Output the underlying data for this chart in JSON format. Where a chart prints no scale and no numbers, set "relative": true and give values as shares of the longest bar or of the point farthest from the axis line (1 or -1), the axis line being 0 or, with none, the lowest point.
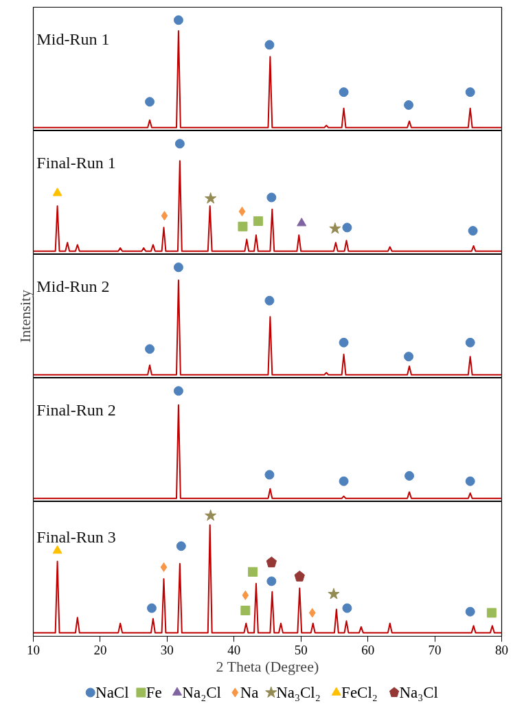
{
  "chart_data": [
    {
      "type": "line",
      "title": "Mid-Run 1",
      "relative": true,
      "xlim": [
        10,
        80
      ],
      "tick_labels": false,
      "series": [
        {
          "color": "#c00000",
          "x": [
            10,
            27.1,
            27.4,
            27.7,
            31.4,
            31.7,
            32.0,
            45.1,
            45.4,
            45.7,
            53.5,
            53.8,
            54.1,
            56.1,
            56.4,
            56.7,
            65.9,
            66.2,
            66.5,
            75.0,
            75.3,
            75.6,
            80
          ],
          "values": [
            0,
            0,
            0.07,
            0,
            0,
            0.9,
            0,
            0,
            0.66,
            0,
            0,
            0.02,
            0,
            0,
            0.18,
            0,
            0,
            0.06,
            0,
            0,
            0.18,
            0,
            0
          ]
        },
        {
          "type": "scatter",
          "color": "#4f81bd",
          "marker": "circle",
          "x": [
            27.4,
            31.7,
            45.3,
            56.4,
            66.1,
            75.3
          ],
          "values": [
            0.24,
            1.0,
            0.77,
            0.33,
            0.21,
            0.33
          ]
        }
      ]
    },
    {
      "type": "line",
      "title": "Final-Run 1",
      "relative": true,
      "xlim": [
        10,
        80
      ],
      "tick_labels": false,
      "series": [
        {
          "color": "#c00000",
          "x": [
            10,
            13.3,
            13.6,
            13.9,
            14.8,
            15.1,
            15.4,
            16.3,
            16.6,
            16.9,
            22.7,
            23.0,
            23.3,
            26.2,
            26.5,
            26.8,
            27.6,
            27.9,
            28.2,
            29.2,
            29.5,
            29.8,
            31.6,
            31.9,
            32.2,
            36.1,
            36.4,
            36.7,
            41.6,
            41.9,
            42.2,
            43.0,
            43.3,
            43.6,
            45.4,
            45.7,
            46.0,
            49.4,
            49.7,
            50.0,
            54.9,
            55.2,
            55.5,
            56.5,
            56.8,
            57.1,
            63.0,
            63.3,
            63.6,
            75.5,
            75.8,
            76.1,
            80
          ],
          "values": [
            0,
            0,
            0.42,
            0,
            0,
            0.08,
            0,
            0,
            0.06,
            0,
            0,
            0.03,
            0,
            0,
            0.03,
            0,
            0,
            0.06,
            0,
            0,
            0.22,
            0,
            0,
            0.84,
            0,
            0,
            0.42,
            0,
            0,
            0.11,
            0,
            0,
            0.15,
            0,
            0,
            0.39,
            0,
            0,
            0.15,
            0,
            0,
            0.08,
            0,
            0,
            0.1,
            0,
            0,
            0.04,
            0,
            0,
            0.05,
            0,
            0
          ]
        },
        {
          "type": "scatter",
          "color": "#4f81bd",
          "marker": "circle",
          "x": [
            31.9,
            45.6,
            56.9,
            75.7
          ],
          "values": [
            1.0,
            0.5,
            0.22,
            0.19
          ]
        },
        {
          "type": "scatter",
          "color": "#9bbb59",
          "marker": "square",
          "x": [
            41.3,
            43.6
          ],
          "values": [
            0.23,
            0.28
          ]
        },
        {
          "type": "scatter",
          "name": "Na₂Cl",
          "color": "#8064a2",
          "marker": "triangle",
          "x": [
            50.1
          ],
          "values": [
            0.26
          ]
        },
        {
          "type": "scatter",
          "color": "#f79646",
          "marker": "diamond",
          "x": [
            29.6,
            41.2
          ],
          "values": [
            0.33,
            0.37
          ]
        },
        {
          "type": "scatter",
          "color": "#948a54",
          "marker": "star",
          "x": [
            36.5,
            55.1
          ],
          "values": [
            0.49,
            0.21
          ]
        },
        {
          "type": "scatter",
          "color": "#ffc000",
          "marker": "triangle",
          "x": [
            13.6
          ],
          "values": [
            0.54
          ]
        }
      ]
    },
    {
      "type": "line",
      "title": "Mid-Run 2",
      "ylabel": "Intensity",
      "relative": true,
      "xlim": [
        10,
        80
      ],
      "tick_labels": false,
      "series": [
        {
          "color": "#c00000",
          "x": [
            10,
            27.1,
            27.4,
            27.7,
            31.4,
            31.7,
            32.0,
            45.1,
            45.4,
            45.7,
            53.5,
            53.8,
            54.1,
            56.1,
            56.4,
            56.7,
            65.9,
            66.2,
            66.5,
            75.0,
            75.3,
            75.6,
            80
          ],
          "values": [
            0,
            0,
            0.09,
            0,
            0,
            0.88,
            0,
            0,
            0.54,
            0,
            0,
            0.02,
            0,
            0,
            0.19,
            0,
            0,
            0.08,
            0,
            0,
            0.17,
            0,
            0
          ]
        },
        {
          "type": "scatter",
          "color": "#4f81bd",
          "marker": "circle",
          "x": [
            27.4,
            31.7,
            45.3,
            56.4,
            66.1,
            75.3
          ],
          "values": [
            0.24,
            1.0,
            0.69,
            0.3,
            0.17,
            0.3
          ]
        }
      ]
    },
    {
      "type": "line",
      "title": "Final-Run 2",
      "relative": true,
      "xlim": [
        10,
        80
      ],
      "tick_labels": false,
      "series": [
        {
          "color": "#c00000",
          "x": [
            10,
            31.4,
            31.7,
            32.0,
            45.1,
            45.4,
            45.7,
            56.1,
            56.4,
            56.7,
            65.9,
            66.2,
            66.5,
            75.0,
            75.3,
            75.6,
            80
          ],
          "values": [
            0,
            0,
            0.87,
            0,
            0,
            0.09,
            0,
            0,
            0.02,
            0,
            0,
            0.06,
            0,
            0,
            0.05,
            0,
            0
          ]
        },
        {
          "type": "scatter",
          "color": "#4f81bd",
          "marker": "circle",
          "x": [
            31.7,
            45.3,
            56.4,
            66.2,
            75.3
          ],
          "values": [
            1.0,
            0.22,
            0.16,
            0.21,
            0.16
          ]
        }
      ]
    },
    {
      "type": "line",
      "title": "Final-Run 3",
      "xlabel": "2 Theta (Degree)",
      "relative": true,
      "xlim": [
        10,
        80
      ],
      "xticks": [
        10,
        20,
        30,
        40,
        50,
        60,
        70,
        80
      ],
      "tick_labels": "x",
      "legend": "bottom",
      "series": [
        {
          "color": "#c00000",
          "x": [
            10,
            13.3,
            13.6,
            13.9,
            16.3,
            16.6,
            16.9,
            22.7,
            23.0,
            23.3,
            27.6,
            27.9,
            28.2,
            29.2,
            29.5,
            29.8,
            31.6,
            31.9,
            32.2,
            36.1,
            36.4,
            36.7,
            41.5,
            41.8,
            42.1,
            43.0,
            43.3,
            43.6,
            45.4,
            45.7,
            46.0,
            46.7,
            47.0,
            47.3,
            49.5,
            49.8,
            50.1,
            51.5,
            51.8,
            52.1,
            55.0,
            55.3,
            55.6,
            56.5,
            56.8,
            57.1,
            58.7,
            59.0,
            59.3,
            63.0,
            63.3,
            63.6,
            75.5,
            75.8,
            76.1,
            78.3,
            78.6,
            78.9,
            80
          ],
          "values": [
            0,
            0,
            0.61,
            0,
            0,
            0.13,
            0,
            0,
            0.08,
            0,
            0,
            0.12,
            0,
            0,
            0.46,
            0,
            0,
            0.59,
            0,
            0,
            0.92,
            0,
            0,
            0.08,
            0,
            0,
            0.42,
            0,
            0,
            0.35,
            0,
            0,
            0.08,
            0,
            0,
            0.38,
            0,
            0,
            0.08,
            0,
            0,
            0.2,
            0,
            0,
            0.1,
            0,
            0,
            0.05,
            0,
            0,
            0.08,
            0,
            0,
            0.06,
            0,
            0,
            0.06,
            0,
            0
          ]
        },
        {
          "type": "scatter",
          "name": "NaCl",
          "color": "#4f81bd",
          "marker": "circle",
          "x": [
            27.7,
            32.1,
            45.6,
            56.9,
            75.3
          ],
          "values": [
            0.21,
            0.74,
            0.44,
            0.21,
            0.18
          ]
        },
        {
          "type": "scatter",
          "name": "Fe",
          "color": "#9bbb59",
          "marker": "square",
          "x": [
            41.7,
            42.8,
            78.5
          ],
          "values": [
            0.19,
            0.52,
            0.17
          ]
        },
        {
          "type": "scatter",
          "name": "Na",
          "color": "#f79646",
          "marker": "diamond",
          "x": [
            29.5,
            41.7,
            51.7
          ],
          "values": [
            0.56,
            0.32,
            0.17
          ]
        },
        {
          "type": "scatter",
          "name": "Na₃Cl₂",
          "color": "#948a54",
          "marker": "star",
          "x": [
            36.5,
            54.9
          ],
          "values": [
            1.0,
            0.33
          ]
        },
        {
          "type": "scatter",
          "name": "FeCl₂",
          "color": "#ffc000",
          "marker": "triangle",
          "x": [
            13.6
          ],
          "values": [
            0.7
          ]
        },
        {
          "type": "scatter",
          "name": "Na₃Cl",
          "color": "#953735",
          "x": [
            45.6,
            49.8
          ],
          "values": [
            0.6,
            0.48
          ]
        }
      ]
    }
  ]
}
